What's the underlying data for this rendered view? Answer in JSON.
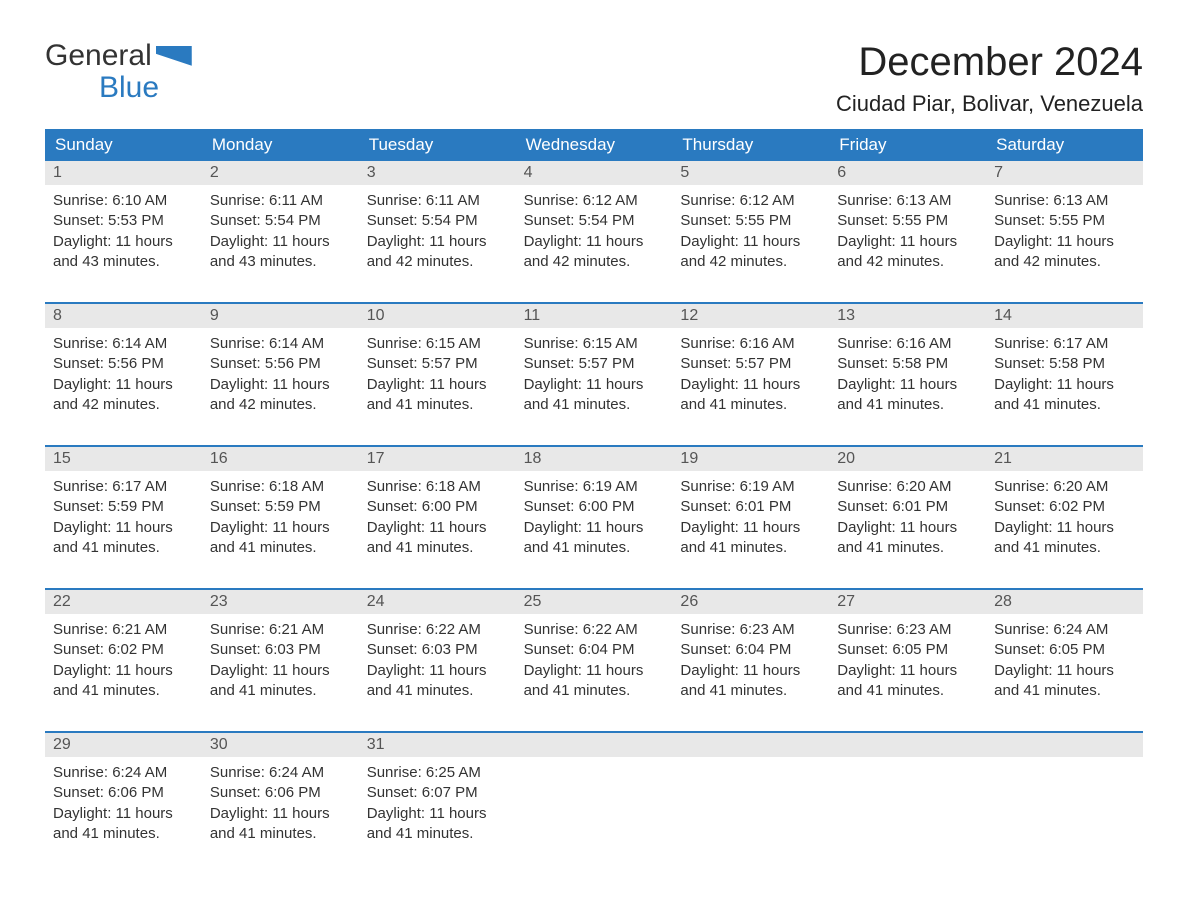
{
  "logo": {
    "word1": "General",
    "word2": "Blue"
  },
  "title": "December 2024",
  "location": "Ciudad Piar, Bolivar, Venezuela",
  "colors": {
    "header_bg": "#2a7ac0",
    "header_text": "#ffffff",
    "daynum_bg": "#e8e8e8",
    "week_border": "#2a7ac0",
    "body_text": "#333333",
    "background": "#ffffff"
  },
  "typography": {
    "title_fontsize": 40,
    "location_fontsize": 22,
    "dow_fontsize": 17,
    "daynum_fontsize": 16,
    "cell_fontsize": 15
  },
  "calendar": {
    "columns": 7,
    "day_names": [
      "Sunday",
      "Monday",
      "Tuesday",
      "Wednesday",
      "Thursday",
      "Friday",
      "Saturday"
    ],
    "weeks": [
      {
        "days": [
          {
            "n": "1",
            "sunrise": "6:10 AM",
            "sunset": "5:53 PM",
            "daylight": "11 hours and 43 minutes."
          },
          {
            "n": "2",
            "sunrise": "6:11 AM",
            "sunset": "5:54 PM",
            "daylight": "11 hours and 43 minutes."
          },
          {
            "n": "3",
            "sunrise": "6:11 AM",
            "sunset": "5:54 PM",
            "daylight": "11 hours and 42 minutes."
          },
          {
            "n": "4",
            "sunrise": "6:12 AM",
            "sunset": "5:54 PM",
            "daylight": "11 hours and 42 minutes."
          },
          {
            "n": "5",
            "sunrise": "6:12 AM",
            "sunset": "5:55 PM",
            "daylight": "11 hours and 42 minutes."
          },
          {
            "n": "6",
            "sunrise": "6:13 AM",
            "sunset": "5:55 PM",
            "daylight": "11 hours and 42 minutes."
          },
          {
            "n": "7",
            "sunrise": "6:13 AM",
            "sunset": "5:55 PM",
            "daylight": "11 hours and 42 minutes."
          }
        ]
      },
      {
        "days": [
          {
            "n": "8",
            "sunrise": "6:14 AM",
            "sunset": "5:56 PM",
            "daylight": "11 hours and 42 minutes."
          },
          {
            "n": "9",
            "sunrise": "6:14 AM",
            "sunset": "5:56 PM",
            "daylight": "11 hours and 42 minutes."
          },
          {
            "n": "10",
            "sunrise": "6:15 AM",
            "sunset": "5:57 PM",
            "daylight": "11 hours and 41 minutes."
          },
          {
            "n": "11",
            "sunrise": "6:15 AM",
            "sunset": "5:57 PM",
            "daylight": "11 hours and 41 minutes."
          },
          {
            "n": "12",
            "sunrise": "6:16 AM",
            "sunset": "5:57 PM",
            "daylight": "11 hours and 41 minutes."
          },
          {
            "n": "13",
            "sunrise": "6:16 AM",
            "sunset": "5:58 PM",
            "daylight": "11 hours and 41 minutes."
          },
          {
            "n": "14",
            "sunrise": "6:17 AM",
            "sunset": "5:58 PM",
            "daylight": "11 hours and 41 minutes."
          }
        ]
      },
      {
        "days": [
          {
            "n": "15",
            "sunrise": "6:17 AM",
            "sunset": "5:59 PM",
            "daylight": "11 hours and 41 minutes."
          },
          {
            "n": "16",
            "sunrise": "6:18 AM",
            "sunset": "5:59 PM",
            "daylight": "11 hours and 41 minutes."
          },
          {
            "n": "17",
            "sunrise": "6:18 AM",
            "sunset": "6:00 PM",
            "daylight": "11 hours and 41 minutes."
          },
          {
            "n": "18",
            "sunrise": "6:19 AM",
            "sunset": "6:00 PM",
            "daylight": "11 hours and 41 minutes."
          },
          {
            "n": "19",
            "sunrise": "6:19 AM",
            "sunset": "6:01 PM",
            "daylight": "11 hours and 41 minutes."
          },
          {
            "n": "20",
            "sunrise": "6:20 AM",
            "sunset": "6:01 PM",
            "daylight": "11 hours and 41 minutes."
          },
          {
            "n": "21",
            "sunrise": "6:20 AM",
            "sunset": "6:02 PM",
            "daylight": "11 hours and 41 minutes."
          }
        ]
      },
      {
        "days": [
          {
            "n": "22",
            "sunrise": "6:21 AM",
            "sunset": "6:02 PM",
            "daylight": "11 hours and 41 minutes."
          },
          {
            "n": "23",
            "sunrise": "6:21 AM",
            "sunset": "6:03 PM",
            "daylight": "11 hours and 41 minutes."
          },
          {
            "n": "24",
            "sunrise": "6:22 AM",
            "sunset": "6:03 PM",
            "daylight": "11 hours and 41 minutes."
          },
          {
            "n": "25",
            "sunrise": "6:22 AM",
            "sunset": "6:04 PM",
            "daylight": "11 hours and 41 minutes."
          },
          {
            "n": "26",
            "sunrise": "6:23 AM",
            "sunset": "6:04 PM",
            "daylight": "11 hours and 41 minutes."
          },
          {
            "n": "27",
            "sunrise": "6:23 AM",
            "sunset": "6:05 PM",
            "daylight": "11 hours and 41 minutes."
          },
          {
            "n": "28",
            "sunrise": "6:24 AM",
            "sunset": "6:05 PM",
            "daylight": "11 hours and 41 minutes."
          }
        ]
      },
      {
        "days": [
          {
            "n": "29",
            "sunrise": "6:24 AM",
            "sunset": "6:06 PM",
            "daylight": "11 hours and 41 minutes."
          },
          {
            "n": "30",
            "sunrise": "6:24 AM",
            "sunset": "6:06 PM",
            "daylight": "11 hours and 41 minutes."
          },
          {
            "n": "31",
            "sunrise": "6:25 AM",
            "sunset": "6:07 PM",
            "daylight": "11 hours and 41 minutes."
          },
          null,
          null,
          null,
          null
        ]
      }
    ]
  },
  "labels": {
    "sunrise_prefix": "Sunrise: ",
    "sunset_prefix": "Sunset: ",
    "daylight_prefix": "Daylight: "
  }
}
